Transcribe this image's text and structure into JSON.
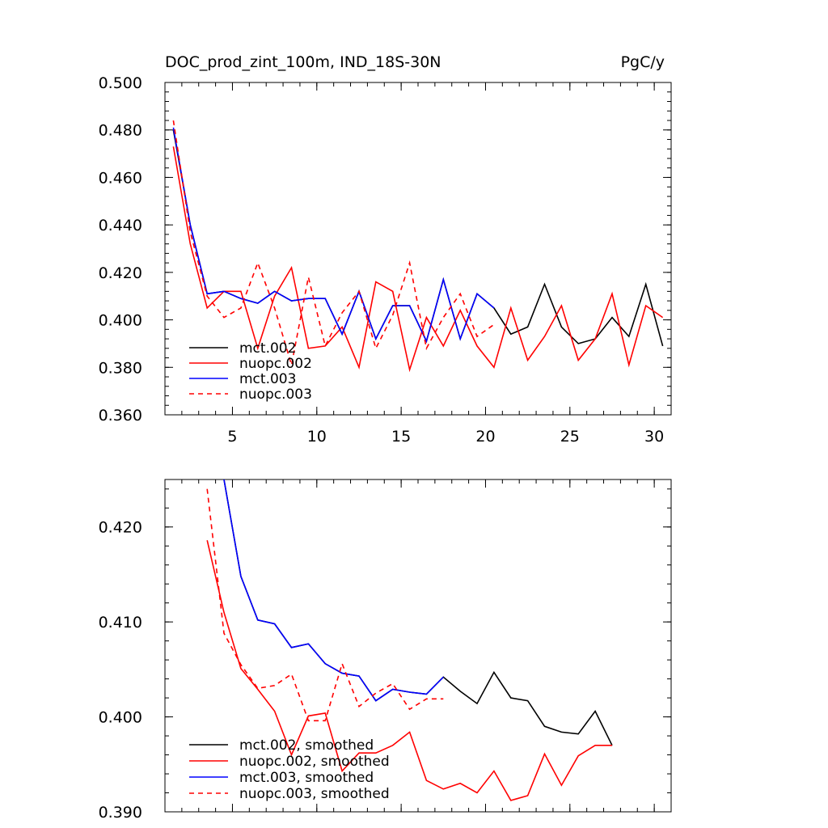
{
  "chart_data": [
    {
      "type": "line",
      "title": "DOC_prod_zint_100m, IND_18S-30N",
      "units": "PgC/y",
      "xlim": [
        1,
        31
      ],
      "ylim": [
        0.36,
        0.5
      ],
      "xticks": [
        5,
        10,
        15,
        20,
        25,
        30
      ],
      "xtick_labels": [
        "5",
        "10",
        "15",
        "20",
        "25",
        "30"
      ],
      "yticks": [
        0.36,
        0.38,
        0.4,
        0.42,
        0.44,
        0.46,
        0.48,
        0.5
      ],
      "ytick_labels": [
        "0.360",
        "0.380",
        "0.400",
        "0.420",
        "0.440",
        "0.460",
        "0.480",
        "0.500"
      ],
      "legend_position": "bottom-left",
      "series": [
        {
          "name": "mct.002",
          "color": "#000000",
          "dash": "solid",
          "x": [
            1.5,
            2.5,
            3.5,
            4.5,
            5.5,
            6.5,
            7.5,
            8.5,
            9.5,
            10.5,
            11.5,
            12.5,
            13.5,
            14.5,
            15.5,
            16.5,
            17.5,
            18.5,
            19.5,
            20.5,
            21.5,
            22.5,
            23.5,
            24.5,
            25.5,
            26.5,
            27.5,
            28.5,
            29.5,
            30.5
          ],
          "y": [
            0.48,
            0.44,
            0.411,
            0.412,
            0.409,
            0.407,
            0.412,
            0.408,
            0.409,
            0.409,
            0.394,
            0.412,
            0.392,
            0.406,
            0.406,
            0.391,
            0.417,
            0.392,
            0.411,
            0.405,
            0.394,
            0.397,
            0.415,
            0.397,
            0.39,
            0.392,
            0.401,
            0.393,
            0.415,
            0.389
          ]
        },
        {
          "name": "nuopc.002",
          "color": "#ff0000",
          "dash": "solid",
          "x": [
            1.5,
            2.5,
            3.5,
            4.5,
            5.5,
            6.5,
            7.5,
            8.5,
            9.5,
            10.5,
            11.5,
            12.5,
            13.5,
            14.5,
            15.5,
            16.5,
            17.5,
            18.5,
            19.5,
            20.5,
            21.5,
            22.5,
            23.5,
            24.5,
            25.5,
            26.5,
            27.5,
            28.5,
            29.5,
            30.5
          ],
          "y": [
            0.473,
            0.432,
            0.405,
            0.412,
            0.412,
            0.388,
            0.41,
            0.422,
            0.388,
            0.389,
            0.397,
            0.38,
            0.416,
            0.412,
            0.379,
            0.401,
            0.389,
            0.404,
            0.389,
            0.38,
            0.405,
            0.383,
            0.393,
            0.406,
            0.383,
            0.392,
            0.411,
            0.381,
            0.406,
            0.401
          ]
        },
        {
          "name": "mct.003",
          "color": "#0000ff",
          "dash": "solid",
          "x": [
            1.5,
            2.5,
            3.5,
            4.5,
            5.5,
            6.5,
            7.5,
            8.5,
            9.5,
            10.5,
            11.5,
            12.5,
            13.5,
            14.5,
            15.5,
            16.5,
            17.5,
            18.5,
            19.5,
            20.5
          ],
          "y": [
            0.481,
            0.44,
            0.411,
            0.412,
            0.409,
            0.407,
            0.412,
            0.408,
            0.409,
            0.409,
            0.394,
            0.412,
            0.392,
            0.406,
            0.406,
            0.391,
            0.417,
            0.392,
            0.411,
            0.405
          ]
        },
        {
          "name": "nuopc.003",
          "color": "#ff0000",
          "dash": "dashed",
          "x": [
            1.5,
            2.5,
            3.5,
            4.5,
            5.5,
            6.5,
            7.5,
            8.5,
            9.5,
            10.5,
            11.5,
            12.5,
            13.5,
            14.5,
            15.5,
            16.5,
            17.5,
            18.5,
            19.5,
            20.5
          ],
          "y": [
            0.484,
            0.437,
            0.41,
            0.401,
            0.405,
            0.424,
            0.405,
            0.381,
            0.418,
            0.389,
            0.403,
            0.412,
            0.388,
            0.402,
            0.424,
            0.388,
            0.401,
            0.411,
            0.393,
            0.398
          ]
        }
      ]
    },
    {
      "type": "line",
      "xlim": [
        1,
        31
      ],
      "ylim": [
        0.39,
        0.425
      ],
      "xticks": [
        5,
        10,
        15,
        20,
        25,
        30
      ],
      "yticks": [
        0.39,
        0.4,
        0.41,
        0.42
      ],
      "ytick_labels": [
        "0.390",
        "0.400",
        "0.410",
        "0.420"
      ],
      "legend_position": "bottom-left",
      "series": [
        {
          "name": "mct.002, smoothed",
          "color": "#000000",
          "dash": "solid",
          "x": [
            4.5,
            5.5,
            6.5,
            7.5,
            8.5,
            9.5,
            10.5,
            11.5,
            12.5,
            13.5,
            14.5,
            15.5,
            16.5,
            17.5,
            18.5,
            19.5,
            20.5,
            21.5,
            22.5,
            23.5,
            24.5,
            25.5,
            26.5,
            27.5
          ],
          "y": [
            0.425,
            0.4148,
            0.4102,
            0.4098,
            0.4073,
            0.4077,
            0.4056,
            0.4046,
            0.4043,
            0.4017,
            0.4029,
            0.4026,
            0.4024,
            0.4042,
            0.4027,
            0.4014,
            0.4047,
            0.402,
            0.4017,
            0.399,
            0.3984,
            0.3982,
            0.4006,
            0.397
          ]
        },
        {
          "name": "nuopc.002, smoothed",
          "color": "#ff0000",
          "dash": "solid",
          "x": [
            3.5,
            4.5,
            5.5,
            6.5,
            7.5,
            8.5,
            9.5,
            10.5,
            11.5,
            12.5,
            13.5,
            14.5,
            15.5,
            16.5,
            17.5,
            18.5,
            19.5,
            20.5,
            21.5,
            22.5,
            23.5,
            24.5,
            25.5,
            26.5,
            27.5
          ],
          "y": [
            0.4186,
            0.411,
            0.4051,
            0.4029,
            0.4006,
            0.396,
            0.4001,
            0.4004,
            0.3943,
            0.3962,
            0.3962,
            0.397,
            0.3984,
            0.3933,
            0.3924,
            0.393,
            0.392,
            0.3943,
            0.3912,
            0.3917,
            0.3961,
            0.3928,
            0.3959,
            0.397,
            0.397
          ]
        },
        {
          "name": "mct.003, smoothed",
          "color": "#0000ff",
          "dash": "solid",
          "x": [
            4.5,
            5.5,
            6.5,
            7.5,
            8.5,
            9.5,
            10.5,
            11.5,
            12.5,
            13.5,
            14.5,
            15.5,
            16.5,
            17.5
          ],
          "y": [
            0.425,
            0.4148,
            0.4102,
            0.4098,
            0.4073,
            0.4077,
            0.4056,
            0.4046,
            0.4043,
            0.4017,
            0.4029,
            0.4026,
            0.4024,
            0.4042
          ]
        },
        {
          "name": "nuopc.003, smoothed",
          "color": "#ff0000",
          "dash": "dashed",
          "x": [
            3.5,
            4.5,
            5.5,
            6.5,
            7.5,
            8.5,
            9.5,
            10.5,
            11.5,
            12.5,
            13.5,
            14.5,
            15.5,
            16.5,
            17.5
          ],
          "y": [
            0.424,
            0.4088,
            0.4055,
            0.403,
            0.4033,
            0.4045,
            0.3996,
            0.3996,
            0.4056,
            0.4011,
            0.4025,
            0.4035,
            0.4008,
            0.4019,
            0.4019
          ]
        }
      ]
    }
  ]
}
